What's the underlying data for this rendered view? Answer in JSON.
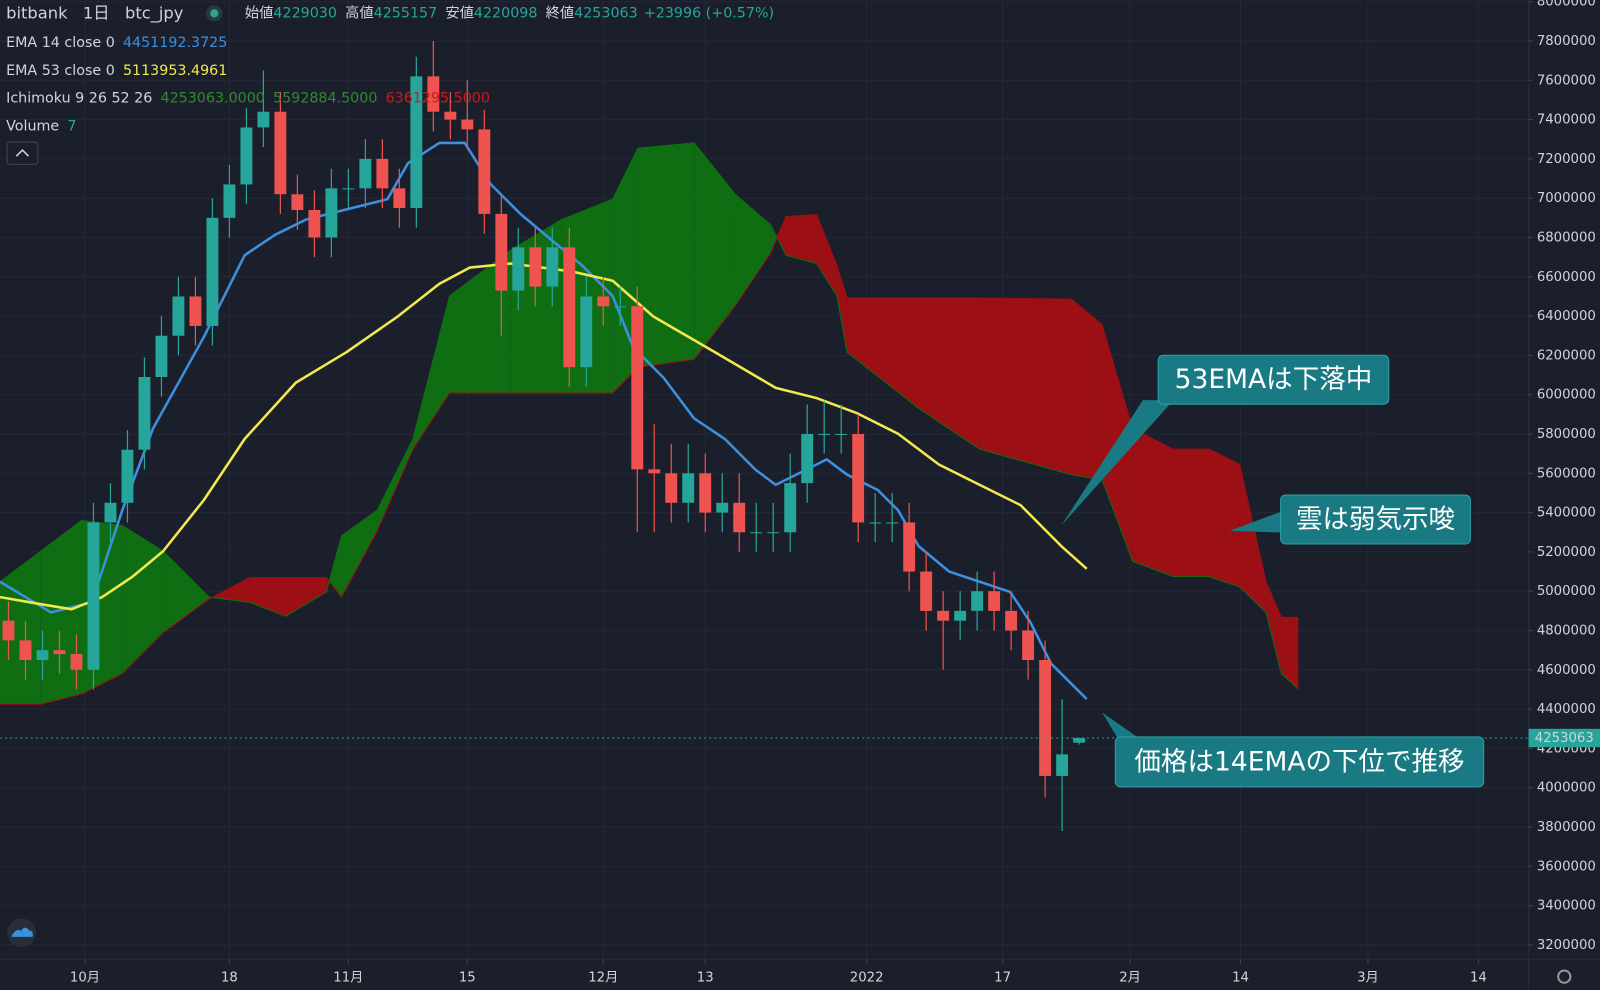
{
  "header": {
    "exchange": "bitbank",
    "interval": "1日",
    "symbol": "btc_jpy",
    "ohlc": [
      {
        "label": "始値",
        "value": "4229030"
      },
      {
        "label": "高値",
        "value": "4255157"
      },
      {
        "label": "安値",
        "value": "4220098"
      },
      {
        "label": "終値",
        "value": "4253063"
      }
    ],
    "change": "+23996 (+0.57%)",
    "value_color": "#26a69a"
  },
  "indicators": [
    {
      "name": "EMA 14 close 0",
      "values": [
        "4451192.3725"
      ],
      "colors": [
        "#3d8fe0"
      ]
    },
    {
      "name": "EMA 53 close 0",
      "values": [
        "5113953.4961"
      ],
      "colors": [
        "#f2e94e"
      ]
    },
    {
      "name": "Ichimoku 9 26 52 26",
      "values": [
        "4253063.0000",
        "5592884.5000",
        "6361295.5000"
      ],
      "colors": [
        "#2e8b2e",
        "#2e8b2e",
        "#d01818"
      ]
    },
    {
      "name": "Volume",
      "values": [
        "7"
      ],
      "colors": [
        "#26a69a"
      ]
    }
  ],
  "chart_data": {
    "type": "candlestick",
    "xlim": [
      0,
      179.9
    ],
    "xticks": [
      {
        "value": 10,
        "label": "10月"
      },
      {
        "value": 27,
        "label": "18"
      },
      {
        "value": 41,
        "label": "11月"
      },
      {
        "value": 55,
        "label": "15"
      },
      {
        "value": 71,
        "label": "12月"
      },
      {
        "value": 83,
        "label": "13"
      },
      {
        "value": 102,
        "label": "2022"
      },
      {
        "value": 118,
        "label": "17"
      },
      {
        "value": 133,
        "label": "2月"
      },
      {
        "value": 146,
        "label": "14"
      },
      {
        "value": 161,
        "label": "3月"
      },
      {
        "value": 174,
        "label": "14"
      }
    ],
    "ylim": [
      3127000,
      8008000
    ],
    "yticks": [
      3200000,
      3400000,
      3600000,
      3800000,
      4000000,
      4200000,
      4400000,
      4600000,
      4800000,
      5000000,
      5200000,
      5400000,
      5600000,
      5800000,
      6000000,
      6200000,
      6400000,
      6600000,
      6800000,
      7000000,
      7200000,
      7400000,
      7600000,
      7800000,
      8000000
    ],
    "grid": true,
    "up_color": "#26a69a",
    "down_color": "#ef5350",
    "candles": {
      "x": [
        1,
        3,
        5,
        7,
        9,
        11,
        13,
        15,
        17,
        19,
        21,
        23,
        25,
        27,
        29,
        31,
        33,
        35,
        37,
        39,
        41,
        43,
        45,
        47,
        49,
        51,
        53,
        55,
        57,
        59,
        61,
        63,
        65,
        67,
        69,
        71,
        73,
        75,
        77,
        79,
        81,
        83,
        85,
        87,
        89,
        91,
        93,
        95,
        97,
        99,
        101,
        103,
        105,
        107,
        109,
        111,
        113,
        115,
        117,
        119,
        121,
        123,
        125,
        127
      ],
      "open": [
        4850000,
        4750000,
        4650000,
        4700000,
        4680000,
        4600000,
        5350000,
        5450000,
        5720000,
        6090000,
        6300000,
        6500000,
        6350000,
        6900000,
        7070000,
        7360000,
        7440000,
        7020000,
        6940000,
        6800000,
        7050000,
        7050000,
        7200000,
        7050000,
        6950000,
        7620000,
        7440000,
        7400000,
        7350000,
        6920000,
        6530000,
        6750000,
        6550000,
        6750000,
        6140000,
        6500000,
        6450000,
        6450000,
        5620000,
        5600000,
        5450000,
        5600000,
        5400000,
        5450000,
        5300000,
        5300000,
        5300000,
        5550000,
        5800000,
        5800000,
        5800000,
        5350000,
        5350000,
        5350000,
        5100000,
        4900000,
        4850000,
        4900000,
        5000000,
        4900000,
        4800000,
        4650000,
        4060000,
        4229030
      ],
      "high": [
        4950000,
        4850000,
        4800000,
        4800000,
        4780000,
        5450000,
        5550000,
        5820000,
        6190000,
        6400000,
        6600000,
        6600000,
        7000000,
        7170000,
        7460000,
        7650000,
        7540000,
        7120000,
        7040000,
        7150000,
        7150000,
        7300000,
        7300000,
        7150000,
        7720000,
        7800000,
        7540000,
        7600000,
        7450000,
        7020000,
        6850000,
        6850000,
        6850000,
        6850000,
        6600000,
        6600000,
        6550000,
        6550000,
        5850000,
        5750000,
        5750000,
        5700000,
        5600000,
        5600000,
        5450000,
        5450000,
        5700000,
        5950000,
        5970000,
        5950000,
        5900000,
        5500000,
        5500000,
        5450000,
        5200000,
        5000000,
        5000000,
        5100000,
        5100000,
        5000000,
        4900000,
        4750000,
        4450000,
        4255157
      ],
      "low": [
        4650000,
        4550000,
        4550000,
        4580000,
        4500000,
        4500000,
        5250000,
        5350000,
        5620000,
        5990000,
        6200000,
        6250000,
        6250000,
        6800000,
        6970000,
        7260000,
        6920000,
        6840000,
        6700000,
        6700000,
        6950000,
        6950000,
        6950000,
        6850000,
        6850000,
        7340000,
        7300000,
        7250000,
        6820000,
        6300000,
        6430000,
        6450000,
        6450000,
        6040000,
        6040000,
        6350000,
        6350000,
        5300000,
        5300000,
        5350000,
        5350000,
        5300000,
        5300000,
        5200000,
        5200000,
        5200000,
        5200000,
        5450000,
        5700000,
        5700000,
        5250000,
        5250000,
        5250000,
        5000000,
        4800000,
        4600000,
        4750000,
        4800000,
        4800000,
        4700000,
        4550000,
        3950000,
        3780000,
        4220098
      ],
      "close": [
        4750000,
        4650000,
        4700000,
        4680000,
        4600000,
        5350000,
        5450000,
        5720000,
        6090000,
        6300000,
        6500000,
        6350000,
        6900000,
        7070000,
        7360000,
        7440000,
        7020000,
        6940000,
        6800000,
        7050000,
        7050000,
        7200000,
        7050000,
        6950000,
        7620000,
        7440000,
        7400000,
        7350000,
        6920000,
        6530000,
        6750000,
        6550000,
        6750000,
        6140000,
        6500000,
        6450000,
        6450000,
        5620000,
        5600000,
        5450000,
        5600000,
        5400000,
        5450000,
        5300000,
        5300000,
        5300000,
        5550000,
        5800000,
        5800000,
        5800000,
        5350000,
        5350000,
        5350000,
        5100000,
        4900000,
        4850000,
        4900000,
        5000000,
        4900000,
        4800000,
        4650000,
        4060000,
        4170000,
        4253063
      ]
    },
    "lines": [
      {
        "color": "#3d8fe0",
        "x": [
          0,
          6.0,
          10.8,
          14.4,
          18.0,
          24.0,
          28.8,
          32.4,
          36.0,
          40.8,
          45.6,
          48.0,
          51.7,
          54.7,
          57.7,
          61.3,
          64.9,
          68.5,
          72.1,
          74.5,
          78.1,
          81.7,
          85.3,
          88.9,
          91.3,
          94.9,
          97.3,
          99.7,
          103.3,
          105.7,
          108.1,
          111.7,
          115.3,
          118.9,
          121.3,
          123.7,
          127.9
        ],
        "values": [
          5048000,
          4892000,
          4944000,
          5412000,
          5827000,
          6294000,
          6710000,
          6814000,
          6891000,
          6943000,
          6995000,
          7177000,
          7281000,
          7281000,
          7073000,
          6918000,
          6788000,
          6658000,
          6502000,
          6242000,
          6086000,
          5879000,
          5775000,
          5619000,
          5541000,
          5619000,
          5671000,
          5593000,
          5515000,
          5412000,
          5230000,
          5100000,
          5048000,
          4996000,
          4840000,
          4632000,
          4451192
        ]
      },
      {
        "color": "#f2e94e",
        "x": [
          0,
          4.8,
          8.4,
          12.0,
          15.6,
          19.2,
          24.0,
          28.8,
          34.8,
          40.8,
          46.8,
          51.7,
          55.3,
          60.1,
          67.3,
          72.1,
          76.9,
          84.1,
          91.3,
          96.1,
          100.9,
          105.7,
          110.5,
          115.3,
          120.1,
          124.9,
          127.9
        ],
        "values": [
          4970000,
          4934000,
          4908000,
          4970000,
          5074000,
          5204000,
          5464000,
          5775000,
          6061000,
          6217000,
          6398000,
          6564000,
          6647000,
          6668000,
          6627000,
          6580000,
          6398000,
          6217000,
          6035000,
          5983000,
          5905000,
          5801000,
          5645000,
          5541000,
          5438000,
          5230000,
          5113954
        ]
      }
    ],
    "cloud": {
      "up_color": "#0f6e12",
      "down_color": "#9c0f14",
      "x": [
        0,
        4.8,
        9.6,
        14.4,
        19.2,
        24.6,
        29.4,
        33.6,
        38.4,
        40.2,
        44.4,
        48.6,
        52.9,
        60.1,
        66.1,
        72.1,
        75.1,
        81.7,
        86.5,
        90.7,
        92.5,
        96.1,
        98.5,
        99.7,
        108.1,
        115.3,
        126.1,
        129.7,
        133.3,
        138.1,
        142.3,
        145.9,
        149.0,
        150.8,
        152.8
      ],
      "span_a": [
        5048000,
        5204000,
        5360000,
        5334000,
        5204000,
        4970000,
        4944000,
        4872000,
        4996000,
        5282000,
        5412000,
        5775000,
        6502000,
        6736000,
        6891000,
        6995000,
        7255000,
        7281000,
        7021000,
        6865000,
        6710000,
        6668000,
        6502000,
        6216000,
        5931000,
        5723000,
        5593000,
        5567000,
        5152000,
        5074000,
        5074000,
        5022000,
        4892000,
        4581000,
        4503000
      ],
      "span_b": [
        4425000,
        4425000,
        4477000,
        4581000,
        4789000,
        4960000,
        5069000,
        5069000,
        5069000,
        4970000,
        5308000,
        5723000,
        6009000,
        6009000,
        6009000,
        6009000,
        6139000,
        6180000,
        6450000,
        6720000,
        6907000,
        6917000,
        6658000,
        6492000,
        6492000,
        6492000,
        6486000,
        6357000,
        5827000,
        5723000,
        5723000,
        5645000,
        5048000,
        4867000,
        4867000
      ]
    },
    "annotations": [
      {
        "text": "53EMAは下落中"
      },
      {
        "text": "雲は弱気示唆"
      },
      {
        "text": "価格は14EMAの下位で推移"
      }
    ]
  }
}
